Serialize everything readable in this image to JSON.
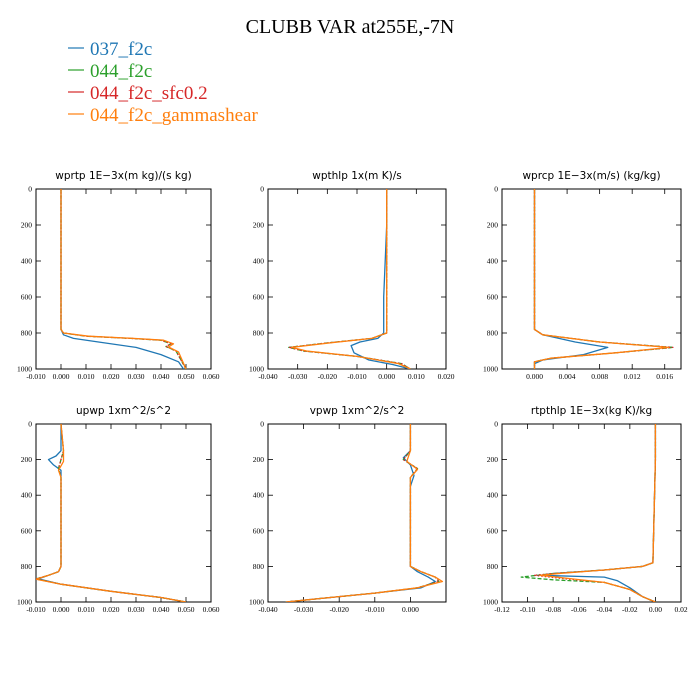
{
  "figure": {
    "title": "CLUBB VAR at255E,-7N"
  },
  "legend": [
    {
      "label": "037_f2c",
      "color": "#1f77b4",
      "dash": "solid"
    },
    {
      "label": "044_f2c",
      "color": "#2ca02c",
      "dash": "dash"
    },
    {
      "label": "044_f2c_sfc0.2",
      "color": "#d62728",
      "dash": "dot"
    },
    {
      "label": "044_f2c_gammashear",
      "color": "#ff7f0e",
      "dash": "solid"
    }
  ],
  "chart_data": [
    {
      "type": "line",
      "title": "wprtp  1E−3x(m kg)/(s kg)",
      "xlim": [
        -0.01,
        0.06
      ],
      "ylim": [
        1000,
        0
      ],
      "xticks": [
        -0.01,
        0.0,
        0.01,
        0.02,
        0.03,
        0.04,
        0.05,
        0.06
      ],
      "xtick_labels": [
        "-0.010",
        "0.000",
        "0.010",
        "0.020",
        "0.030",
        "0.040",
        "0.050",
        "0.060"
      ],
      "yticks": [
        0,
        200,
        400,
        600,
        800,
        1000
      ],
      "ytick_labels": [
        "0",
        "200",
        "400",
        "600",
        "800",
        "1000"
      ],
      "series": [
        {
          "x": [
            0.0,
            0.0,
            0.0,
            0.0,
            0.001,
            0.005,
            0.015,
            0.03,
            0.04,
            0.047,
            0.049
          ],
          "y": [
            0,
            200,
            600,
            780,
            810,
            830,
            850,
            880,
            920,
            960,
            1000
          ]
        },
        {
          "x": [
            0.0,
            0.0,
            0.0,
            0.0,
            0.001,
            0.01,
            0.028,
            0.04,
            0.044,
            0.042,
            0.046,
            0.05
          ],
          "y": [
            0,
            200,
            600,
            780,
            800,
            818,
            830,
            840,
            860,
            875,
            900,
            1000
          ]
        },
        {
          "x": [
            0.0,
            0.0,
            0.0,
            0.0,
            0.001,
            0.01,
            0.028,
            0.04,
            0.044,
            0.042,
            0.046,
            0.05
          ],
          "y": [
            0,
            200,
            600,
            780,
            800,
            818,
            830,
            840,
            860,
            875,
            900,
            1000
          ]
        },
        {
          "x": [
            0.0,
            0.0,
            0.0,
            0.0,
            0.001,
            0.011,
            0.029,
            0.041,
            0.045,
            0.043,
            0.047,
            0.05
          ],
          "y": [
            0,
            200,
            600,
            780,
            800,
            818,
            830,
            840,
            860,
            878,
            905,
            1000
          ]
        }
      ]
    },
    {
      "type": "line",
      "title": "wpthlp  1x(m K)/s",
      "xlim": [
        -0.04,
        0.02
      ],
      "ylim": [
        1000,
        0
      ],
      "xticks": [
        -0.04,
        -0.03,
        -0.02,
        -0.01,
        0.0,
        0.01,
        0.02
      ],
      "xtick_labels": [
        "-0.040",
        "-0.030",
        "-0.020",
        "-0.010",
        "0.000",
        "0.010",
        "0.020"
      ],
      "yticks": [
        0,
        200,
        400,
        600,
        800,
        1000
      ],
      "ytick_labels": [
        "0",
        "200",
        "400",
        "600",
        "800",
        "1000"
      ],
      "series": [
        {
          "x": [
            0.0,
            0.0,
            -0.001,
            -0.001,
            -0.003,
            -0.009,
            -0.012,
            -0.011,
            -0.006,
            0.002,
            0.008
          ],
          "y": [
            0,
            200,
            600,
            800,
            830,
            850,
            870,
            910,
            950,
            975,
            1000
          ]
        },
        {
          "x": [
            0.0,
            0.0,
            0.0,
            0.0,
            -0.005,
            -0.02,
            -0.033,
            -0.028,
            -0.01,
            0.005,
            0.008
          ],
          "y": [
            0,
            200,
            600,
            800,
            830,
            855,
            880,
            900,
            930,
            970,
            1000
          ]
        },
        {
          "x": [
            0.0,
            0.0,
            0.0,
            0.0,
            -0.005,
            -0.02,
            -0.033,
            -0.028,
            -0.01,
            0.005,
            0.008
          ],
          "y": [
            0,
            200,
            600,
            800,
            830,
            855,
            880,
            900,
            930,
            970,
            1000
          ]
        },
        {
          "x": [
            0.0,
            0.0,
            0.0,
            0.0,
            -0.005,
            -0.019,
            -0.032,
            -0.027,
            -0.01,
            0.004,
            0.008
          ],
          "y": [
            0,
            200,
            600,
            800,
            830,
            855,
            880,
            900,
            930,
            970,
            1000
          ]
        }
      ]
    },
    {
      "type": "line",
      "title": "wprcp  1E−3x(m/s) (kg/kg)",
      "xlim": [
        -0.004,
        0.018
      ],
      "ylim": [
        1000,
        0
      ],
      "xticks": [
        0.0,
        0.004,
        0.008,
        0.012,
        0.016
      ],
      "xtick_labels": [
        "0.000",
        "0.004",
        "0.008",
        "0.012",
        "0.016"
      ],
      "yticks": [
        0,
        200,
        400,
        600,
        800,
        1000
      ],
      "ytick_labels": [
        "0",
        "200",
        "400",
        "600",
        "800",
        "1000"
      ],
      "series": [
        {
          "x": [
            0.0,
            0.0,
            0.0,
            0.001,
            0.005,
            0.009,
            0.006,
            0.001,
            0.0,
            0.0
          ],
          "y": [
            0,
            200,
            780,
            810,
            850,
            880,
            920,
            950,
            970,
            1000
          ]
        },
        {
          "x": [
            0.0,
            0.0,
            0.0,
            0.001,
            0.008,
            0.017,
            0.01,
            0.002,
            0.0,
            0.0
          ],
          "y": [
            0,
            200,
            780,
            810,
            850,
            880,
            910,
            940,
            960,
            1000
          ]
        },
        {
          "x": [
            0.0,
            0.0,
            0.0,
            0.001,
            0.008,
            0.017,
            0.01,
            0.002,
            0.0,
            0.0
          ],
          "y": [
            0,
            200,
            780,
            810,
            850,
            880,
            910,
            940,
            960,
            1000
          ]
        },
        {
          "x": [
            0.0,
            0.0,
            0.0,
            0.001,
            0.008,
            0.0165,
            0.01,
            0.002,
            0.0,
            0.0
          ],
          "y": [
            0,
            200,
            780,
            810,
            850,
            880,
            910,
            940,
            960,
            1000
          ]
        }
      ]
    },
    {
      "type": "line",
      "title": "upwp  1xm^2/s^2",
      "xlim": [
        -0.01,
        0.06
      ],
      "ylim": [
        1000,
        0
      ],
      "xticks": [
        -0.01,
        0.0,
        0.01,
        0.02,
        0.03,
        0.04,
        0.05,
        0.06
      ],
      "xtick_labels": [
        "-0.010",
        "0.000",
        "0.010",
        "0.020",
        "0.030",
        "0.040",
        "0.050",
        "0.060"
      ],
      "yticks": [
        0,
        200,
        400,
        600,
        800,
        1000
      ],
      "ytick_labels": [
        "0",
        "200",
        "400",
        "600",
        "800",
        "1000"
      ],
      "series": [
        {
          "x": [
            0.0,
            0.0,
            -0.002,
            -0.005,
            -0.003,
            0.0,
            0.0,
            0.0,
            -0.001,
            -0.005,
            -0.009,
            0.0,
            0.02,
            0.04,
            0.05
          ],
          "y": [
            0,
            150,
            180,
            200,
            230,
            260,
            300,
            800,
            830,
            850,
            870,
            900,
            940,
            975,
            1000
          ]
        },
        {
          "x": [
            0.0,
            0.001,
            0.0,
            -0.001,
            0.0,
            0.0,
            0.0,
            -0.001,
            -0.005,
            -0.01,
            0.0,
            0.02,
            0.04,
            0.05
          ],
          "y": [
            0,
            150,
            200,
            250,
            300,
            500,
            800,
            830,
            850,
            870,
            900,
            940,
            975,
            1000
          ]
        },
        {
          "x": [
            0.0,
            0.001,
            0.0,
            -0.001,
            0.0,
            0.0,
            0.0,
            -0.001,
            -0.005,
            -0.01,
            0.0,
            0.02,
            0.04,
            0.05
          ],
          "y": [
            0,
            150,
            200,
            250,
            300,
            500,
            800,
            830,
            850,
            870,
            900,
            940,
            975,
            1000
          ]
        },
        {
          "x": [
            0.0,
            0.001,
            0.001,
            -0.001,
            0.0,
            0.0,
            0.0,
            -0.001,
            -0.005,
            -0.01,
            0.0,
            0.02,
            0.04,
            0.05
          ],
          "y": [
            0,
            150,
            210,
            260,
            300,
            500,
            800,
            830,
            850,
            872,
            900,
            940,
            975,
            1000
          ]
        }
      ]
    },
    {
      "type": "line",
      "title": "vpwp  1xm^2/s^2",
      "xlim": [
        -0.04,
        0.01
      ],
      "ylim": [
        1000,
        0
      ],
      "xticks": [
        -0.04,
        -0.03,
        -0.02,
        -0.01,
        0.0
      ],
      "xtick_labels": [
        "-0.040",
        "-0.030",
        "-0.020",
        "-0.010",
        "0.000"
      ],
      "yticks": [
        0,
        200,
        400,
        600,
        800,
        1000
      ],
      "ytick_labels": [
        "0",
        "200",
        "400",
        "600",
        "800",
        "1000"
      ],
      "series": [
        {
          "x": [
            0.0,
            0.0,
            -0.002,
            0.0,
            0.001,
            0.0,
            0.0,
            0.0,
            0.002,
            0.005,
            0.007,
            0.003,
            -0.01,
            -0.025,
            -0.035
          ],
          "y": [
            0,
            150,
            190,
            230,
            290,
            350,
            500,
            800,
            830,
            860,
            885,
            920,
            950,
            980,
            1000
          ]
        },
        {
          "x": [
            0.0,
            0.0,
            -0.002,
            0.002,
            0.0,
            0.0,
            0.0,
            0.003,
            0.007,
            0.008,
            0.002,
            -0.01,
            -0.025,
            -0.035
          ],
          "y": [
            0,
            150,
            200,
            250,
            300,
            500,
            800,
            830,
            860,
            885,
            920,
            950,
            980,
            1000
          ]
        },
        {
          "x": [
            0.0,
            0.0,
            -0.002,
            0.002,
            0.0,
            0.0,
            0.0,
            0.003,
            0.007,
            0.008,
            0.002,
            -0.01,
            -0.025,
            -0.035
          ],
          "y": [
            0,
            150,
            200,
            250,
            300,
            500,
            800,
            830,
            860,
            885,
            920,
            950,
            980,
            1000
          ]
        },
        {
          "x": [
            0.0,
            0.0,
            -0.001,
            0.002,
            0.0,
            0.0,
            0.0,
            0.003,
            0.007,
            0.009,
            0.002,
            -0.01,
            -0.025,
            -0.035
          ],
          "y": [
            0,
            150,
            210,
            255,
            300,
            500,
            800,
            830,
            860,
            885,
            920,
            950,
            980,
            1000
          ]
        }
      ]
    },
    {
      "type": "line",
      "title": "rtpthlp  1E−3x(kg K)/kg",
      "xlim": [
        -0.12,
        0.02
      ],
      "ylim": [
        1000,
        0
      ],
      "xticks": [
        -0.12,
        -0.1,
        -0.08,
        -0.06,
        -0.04,
        -0.02,
        0.0,
        0.02
      ],
      "xtick_labels": [
        "-0.12",
        "-0.10",
        "-0.08",
        "-0.06",
        "-0.04",
        "-0.02",
        "0.00",
        "0.02"
      ],
      "yticks": [
        0,
        200,
        400,
        600,
        800,
        1000
      ],
      "ytick_labels": [
        "0",
        "200",
        "400",
        "600",
        "800",
        "1000"
      ],
      "series": [
        {
          "x": [
            0.0,
            0.0,
            -0.002,
            -0.01,
            -0.04,
            -0.08,
            -0.09,
            -0.04,
            -0.03,
            -0.02,
            -0.01,
            0.0
          ],
          "y": [
            0,
            200,
            780,
            800,
            820,
            840,
            850,
            860,
            880,
            920,
            970,
            1000
          ]
        },
        {
          "x": [
            0.0,
            0.0,
            -0.002,
            -0.01,
            -0.04,
            -0.08,
            -0.105,
            -0.08,
            -0.04,
            -0.02,
            -0.01,
            0.0
          ],
          "y": [
            0,
            200,
            780,
            800,
            820,
            840,
            860,
            875,
            890,
            930,
            970,
            1000
          ]
        },
        {
          "x": [
            0.0,
            0.0,
            -0.002,
            -0.01,
            -0.04,
            -0.08,
            -0.095,
            -0.07,
            -0.04,
            -0.02,
            -0.01,
            0.0
          ],
          "y": [
            0,
            200,
            780,
            800,
            820,
            840,
            850,
            870,
            890,
            930,
            970,
            1000
          ]
        },
        {
          "x": [
            0.0,
            0.0,
            -0.002,
            -0.01,
            -0.04,
            -0.075,
            -0.09,
            -0.065,
            -0.04,
            -0.02,
            -0.01,
            0.0
          ],
          "y": [
            0,
            200,
            780,
            800,
            820,
            840,
            850,
            870,
            890,
            930,
            970,
            1000
          ]
        }
      ]
    }
  ]
}
